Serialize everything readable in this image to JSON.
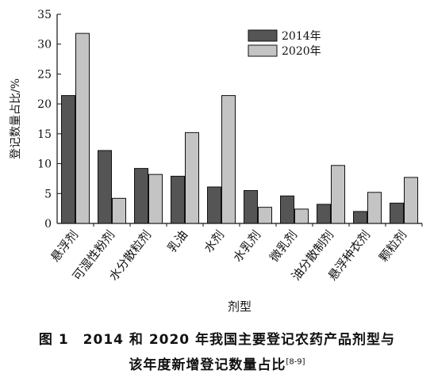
{
  "chart_data": {
    "type": "bar",
    "ylabel": "登记数量占比/%",
    "xlabel": "剂型",
    "ylim": [
      0,
      35
    ],
    "yticks": [
      0,
      5,
      10,
      15,
      20,
      25,
      30,
      35
    ],
    "grid": false,
    "legend_position": "top-right",
    "categories": [
      "悬浮剂",
      "可湿性粉剂",
      "水分散粒剂",
      "乳油",
      "水剂",
      "水乳剂",
      "微乳剂",
      "油分散制剂",
      "悬浮种衣剂",
      "颗粒剂"
    ],
    "series": [
      {
        "name": "2014年",
        "color": "#555555",
        "values": [
          21.4,
          12.2,
          9.2,
          7.9,
          6.1,
          5.5,
          4.6,
          3.2,
          2.0,
          3.4
        ]
      },
      {
        "name": "2020年",
        "color": "#c4c4c4",
        "values": [
          31.8,
          4.2,
          8.2,
          15.2,
          21.4,
          2.7,
          2.4,
          9.7,
          5.2,
          7.7
        ]
      }
    ]
  },
  "caption": {
    "line1": "图 1　2014 和 2020 年我国主要登记农药产品剂型与",
    "line2": "该年度新增登记数量占比",
    "ref": "[8-9]"
  }
}
